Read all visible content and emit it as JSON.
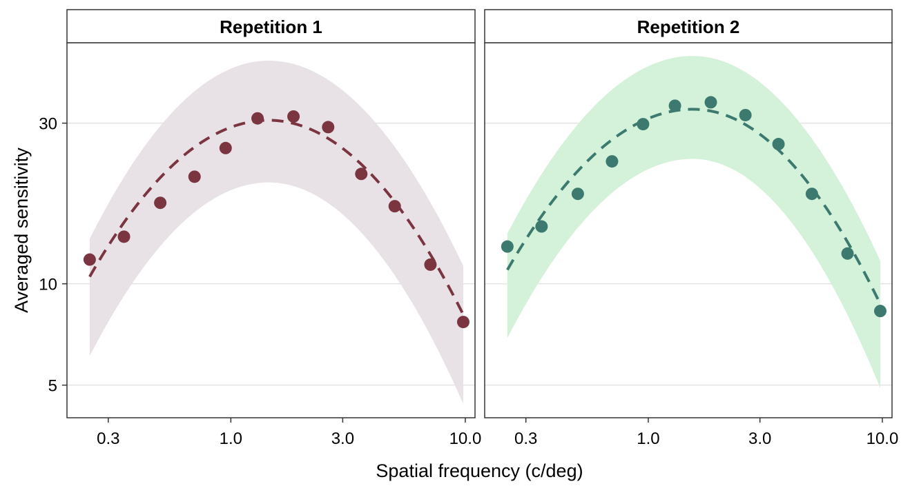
{
  "chart_data": {
    "type": "scatter",
    "title": "",
    "xlabel": "Spatial frequency (c/deg)",
    "ylabel": "Averaged sensitivity",
    "x_scale": "log",
    "y_scale": "log",
    "xlim": [
      0.2,
      11
    ],
    "ylim": [
      4.0,
      52
    ],
    "x_ticks": [
      0.3,
      1.0,
      3.0,
      10.0
    ],
    "x_tick_labels": [
      "0.3",
      "1.0",
      "3.0",
      "10.0"
    ],
    "y_ticks": [
      5,
      10,
      30
    ],
    "y_tick_labels": [
      "5",
      "10",
      "30"
    ],
    "grid": "horizontal major",
    "legend": "none",
    "panels": [
      {
        "label": "Repetition 1",
        "point_color": "#7b3540",
        "band_color": "#e8e2e7",
        "points": {
          "x": [
            0.25,
            0.35,
            0.5,
            0.7,
            0.95,
            1.3,
            1.85,
            2.6,
            3.6,
            5.0,
            7.1,
            9.8
          ],
          "y": [
            11.8,
            13.8,
            17.4,
            20.8,
            25.3,
            31.0,
            31.4,
            29.2,
            21.2,
            17.0,
            11.4,
            7.7
          ]
        },
        "fit": {
          "peak_x": 1.45,
          "peak_y": 30.6,
          "y_at_min_x": 10.5,
          "y_at_max_x": 8.1
        },
        "band": {
          "lower": {
            "peak_y": 20.0,
            "y_at_min_x": 6.1,
            "y_at_max_x": 4.4
          },
          "upper": {
            "peak_y": 46.0,
            "y_at_min_x": 13.6,
            "y_at_max_x": 11.3
          }
        }
      },
      {
        "label": "Repetition 2",
        "point_color": "#3c7a70",
        "band_color": "#d4f1d9",
        "points": {
          "x": [
            0.25,
            0.35,
            0.5,
            0.7,
            0.95,
            1.3,
            1.85,
            2.6,
            3.6,
            5.0,
            7.1,
            9.8
          ],
          "y": [
            12.9,
            14.8,
            18.5,
            23.1,
            29.8,
            33.8,
            34.6,
            31.7,
            26.0,
            18.5,
            12.3,
            8.3
          ]
        },
        "fit": {
          "peak_x": 1.55,
          "peak_y": 33.0,
          "y_at_min_x": 11.0,
          "y_at_max_x": 8.7
        },
        "band": {
          "lower": {
            "peak_y": 23.5,
            "y_at_min_x": 6.9,
            "y_at_max_x": 4.9
          },
          "upper": {
            "peak_y": 47.5,
            "y_at_min_x": 14.1,
            "y_at_max_x": 11.7
          }
        }
      }
    ]
  }
}
